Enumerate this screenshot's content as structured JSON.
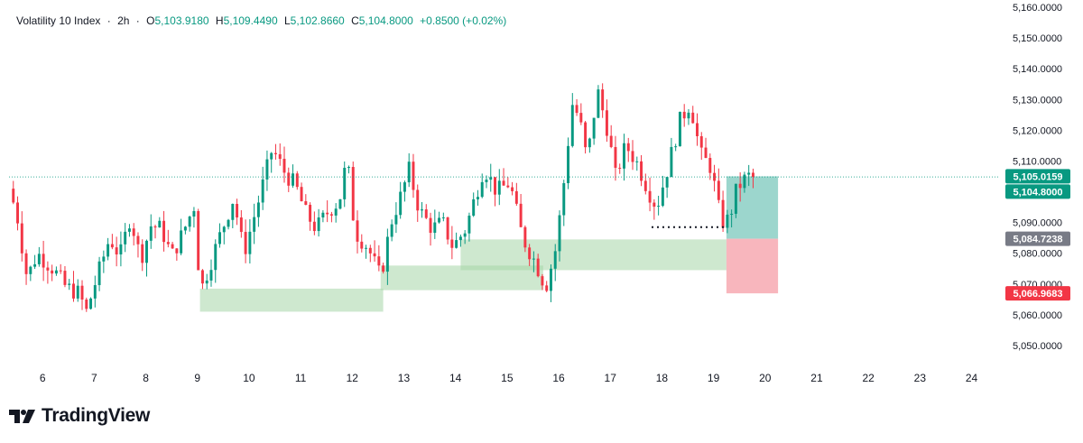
{
  "header": {
    "symbol": "Volatility 10 Index",
    "timeframe": "2h",
    "open_label": "O",
    "open": "5,103.9180",
    "high_label": "H",
    "high": "5,109.4490",
    "low_label": "L",
    "low": "5,102.8660",
    "close_label": "C",
    "close": "5,104.8000",
    "change": "+0.8500 (+0.02%)"
  },
  "brand": {
    "name": "TradingView"
  },
  "colors": {
    "up": "#089981",
    "down": "#f23645",
    "zone_green": "#a5d6a7",
    "zone_red": "#f7a9b1",
    "tag_green": "#089981",
    "tag_gray": "#787b86",
    "tag_red": "#f23645"
  },
  "chart_data": {
    "type": "candlestick",
    "title": "Volatility 10 Index · 2h",
    "ylim": [
      5045,
      5160
    ],
    "y_ticks": [
      5160,
      5150,
      5140,
      5130,
      5120,
      5110,
      5100,
      5090,
      5080,
      5070,
      5060,
      5050
    ],
    "y_tick_labels": [
      "5,160.0000",
      "5,150.0000",
      "5,140.0000",
      "5,130.0000",
      "5,120.0000",
      "5,110.0000",
      "5,100.0000",
      "5,090.0000",
      "5,080.0000",
      "5,070.0000",
      "5,060.0000",
      "5,050.0000"
    ],
    "x_range": [
      5.35,
      24.55
    ],
    "x_ticks": [
      6,
      7,
      8,
      9,
      10,
      11,
      12,
      13,
      14,
      15,
      16,
      17,
      18,
      19,
      20,
      21,
      22,
      23,
      24
    ],
    "x_tick_labels": [
      "6",
      "7",
      "8",
      "9",
      "10",
      "11",
      "12",
      "13",
      "14",
      "15",
      "16",
      "17",
      "18",
      "19",
      "20",
      "21",
      "22",
      "23",
      "24"
    ],
    "anchors": [
      [
        5.35,
        5101
      ],
      [
        5.5,
        5093
      ],
      [
        5.7,
        5072
      ],
      [
        5.9,
        5080
      ],
      [
        6.2,
        5075
      ],
      [
        6.45,
        5069
      ],
      [
        6.7,
        5067
      ],
      [
        6.85,
        5061
      ],
      [
        7.05,
        5072
      ],
      [
        7.3,
        5085
      ],
      [
        7.5,
        5079
      ],
      [
        7.7,
        5092
      ],
      [
        7.9,
        5078
      ],
      [
        8.1,
        5089
      ],
      [
        8.3,
        5088
      ],
      [
        8.5,
        5079
      ],
      [
        8.7,
        5086
      ],
      [
        8.95,
        5096
      ],
      [
        9.05,
        5067
      ],
      [
        9.4,
        5084
      ],
      [
        9.7,
        5098
      ],
      [
        9.9,
        5080
      ],
      [
        10.2,
        5098
      ],
      [
        10.45,
        5114
      ],
      [
        10.7,
        5106
      ],
      [
        10.9,
        5102
      ],
      [
        11.1,
        5093
      ],
      [
        11.3,
        5088
      ],
      [
        11.55,
        5094
      ],
      [
        11.75,
        5097
      ],
      [
        11.9,
        5111
      ],
      [
        12.05,
        5087
      ],
      [
        12.3,
        5082
      ],
      [
        12.55,
        5072
      ],
      [
        12.75,
        5090
      ],
      [
        12.95,
        5099
      ],
      [
        13.1,
        5107
      ],
      [
        13.3,
        5094
      ],
      [
        13.55,
        5088
      ],
      [
        13.75,
        5090
      ],
      [
        13.95,
        5082
      ],
      [
        14.2,
        5088
      ],
      [
        14.55,
        5108
      ],
      [
        14.8,
        5100
      ],
      [
        15.05,
        5103
      ],
      [
        15.3,
        5085
      ],
      [
        15.55,
        5077
      ],
      [
        15.75,
        5069
      ],
      [
        15.95,
        5082
      ],
      [
        16.15,
        5110
      ],
      [
        16.25,
        5129
      ],
      [
        16.4,
        5124
      ],
      [
        16.55,
        5110
      ],
      [
        16.75,
        5133
      ],
      [
        16.95,
        5120
      ],
      [
        17.1,
        5105
      ],
      [
        17.3,
        5115
      ],
      [
        17.5,
        5110
      ],
      [
        17.75,
        5100
      ],
      [
        17.9,
        5095
      ],
      [
        18.1,
        5107
      ],
      [
        18.35,
        5123
      ],
      [
        18.55,
        5129
      ],
      [
        18.75,
        5112
      ],
      [
        18.95,
        5108
      ],
      [
        19.15,
        5090
      ],
      [
        19.3,
        5091
      ],
      [
        19.45,
        5101
      ],
      [
        19.65,
        5105
      ],
      [
        19.8,
        5104.8
      ]
    ],
    "range_bar_marker": [
      19.4,
      5105
    ],
    "volume": false,
    "zones_demand": [
      {
        "x": [
          9.05,
          12.6
        ],
        "y": [
          5061,
          5068.5
        ]
      },
      {
        "x": [
          12.55,
          15.7
        ],
        "y": [
          5068,
          5076
        ]
      },
      {
        "x": [
          14.1,
          19.25
        ],
        "y": [
          5074.5,
          5084.5
        ]
      }
    ],
    "position": {
      "x": [
        19.25,
        20.25
      ],
      "entry": 5084.7238,
      "target": 5105.0159,
      "stop": 5066.9683
    },
    "dotted_level": {
      "x": [
        17.8,
        19.2
      ],
      "y": 5088.5
    },
    "last_price_line": 5104.8,
    "price_tags": [
      {
        "value": 5105.0159,
        "label": "5,105.0159",
        "color": "green"
      },
      {
        "value": 5104.8,
        "label": "5,104.8000",
        "color": "green"
      },
      {
        "value": 5084.7238,
        "label": "5,084.7238",
        "color": "gray"
      },
      {
        "value": 5066.9683,
        "label": "5,066.9683",
        "color": "red"
      }
    ]
  }
}
